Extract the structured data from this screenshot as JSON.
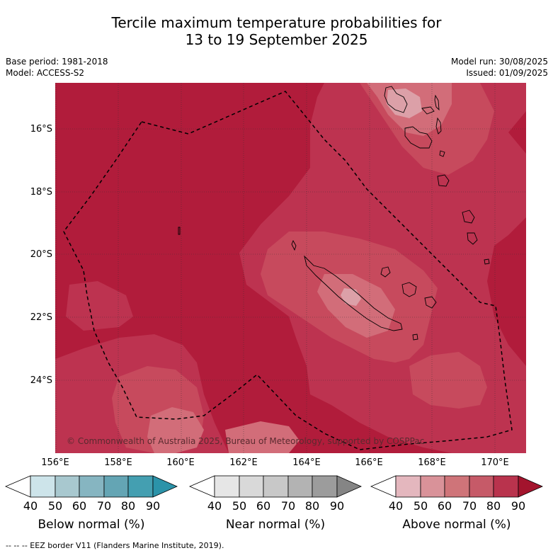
{
  "title": {
    "line1": "Tercile maximum temperature probabilities for",
    "line2": "13 to 19 September 2025"
  },
  "meta": {
    "base_period": "Base period: 1981-2018",
    "model": "Model: ACCESS-S2",
    "model_run": "Model run: 30/08/2025",
    "issued": "Issued: 01/09/2025"
  },
  "map": {
    "latitude_labels": [
      "16°S",
      "18°S",
      "20°S",
      "22°S",
      "24°S"
    ],
    "longitude_labels": [
      "156°E",
      "158°E",
      "160°E",
      "162°E",
      "164°E",
      "166°E",
      "168°E",
      "170°E"
    ],
    "extent": {
      "lon": [
        155.99,
        171.0
      ],
      "lat": [
        -14.45,
        -26.25
      ]
    },
    "copyright": "© Commonwealth of Australia 2025, Bureau of Meteorology, supported by COSPPac",
    "dominant_category": "Above normal",
    "colors": {
      "above_80": "#b11c3b",
      "above_70": "#c0384f",
      "above_60": "#cd6571",
      "above_50": "#d8888f",
      "above_40": "#e2b4ba",
      "coast": "#000000",
      "eez": "#000000"
    }
  },
  "colorbars": [
    {
      "name": "Below normal (%)",
      "ticks": [
        "40",
        "50",
        "60",
        "70",
        "80",
        "90"
      ],
      "colors": [
        "#ffffff",
        "#cde4ea",
        "#a8c8cf",
        "#86b5c1",
        "#64a5b4",
        "#449fb1",
        "#2b93a9"
      ]
    },
    {
      "name": "Near normal (%)",
      "ticks": [
        "40",
        "50",
        "60",
        "70",
        "80",
        "90"
      ],
      "colors": [
        "#ffffff",
        "#e6e6e6",
        "#d9d9d9",
        "#c8c8c8",
        "#b3b3b3",
        "#9c9c9c",
        "#858585"
      ]
    },
    {
      "name": "Above normal (%)",
      "ticks": [
        "40",
        "50",
        "60",
        "70",
        "80",
        "90"
      ],
      "colors": [
        "#ffffff",
        "#e4b7be",
        "#d99299",
        "#cf7479",
        "#c65a68",
        "#b9334d",
        "#a3142d"
      ]
    }
  ],
  "footer": {
    "legend_text": "--  --  -- EEZ border V11 (Flanders Marine Institute, 2019)."
  }
}
